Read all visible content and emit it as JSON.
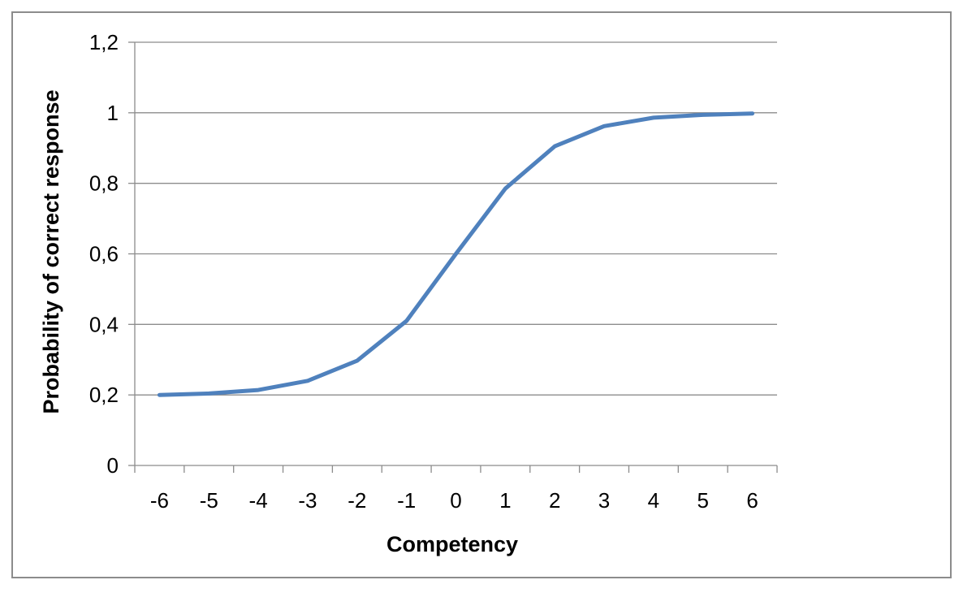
{
  "chart_data": {
    "type": "line",
    "title": "",
    "xlabel": "Competency",
    "ylabel": "Probability of correct response",
    "categories": [
      "-6",
      "-5",
      "-4",
      "-3",
      "-2",
      "-1",
      "0",
      "1",
      "2",
      "3",
      "4",
      "5",
      "6"
    ],
    "x": [
      -6,
      -5,
      -4,
      -3,
      -2,
      -1,
      0,
      1,
      2,
      3,
      4,
      5,
      6
    ],
    "series": [
      {
        "values": [
          0.2,
          0.204,
          0.214,
          0.24,
          0.297,
          0.41,
          0.6,
          0.785,
          0.905,
          0.962,
          0.986,
          0.994,
          0.998
        ],
        "color": "#4f81bd"
      }
    ],
    "ylim": [
      0,
      1.2
    ],
    "yticks": [
      "0",
      "0,2",
      "0,4",
      "0,6",
      "0,8",
      "1",
      "1,2"
    ],
    "ytick_values": [
      0,
      0.2,
      0.4,
      0.6,
      0.8,
      1.0,
      1.2
    ],
    "grid": true,
    "legend": "none"
  },
  "colors": {
    "gridline": "#8c8c8c",
    "axis": "#8c8c8c",
    "series": "#4f81bd"
  }
}
